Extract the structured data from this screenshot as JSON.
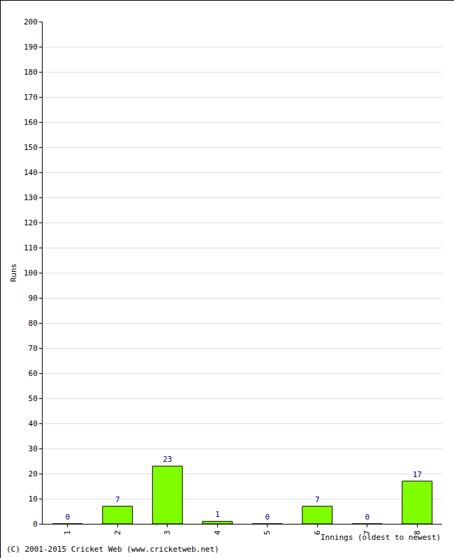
{
  "chart_data": {
    "type": "bar",
    "categories": [
      "1",
      "2",
      "3",
      "4",
      "5",
      "6",
      "7",
      "8"
    ],
    "values": [
      0,
      7,
      23,
      1,
      0,
      7,
      0,
      17
    ],
    "color": "#80ff00",
    "y_label": "Runs",
    "x_label": "Innings (oldest to newest)",
    "annotations": [
      "(C) 2001-2015 Cricket Web (www.cricketweb.net)"
    ],
    "ylim": [
      0,
      200
    ],
    "yticks": [
      0,
      10,
      20,
      30,
      40,
      50,
      60,
      70,
      80,
      90,
      100,
      110,
      120,
      130,
      140,
      150,
      160,
      170,
      180,
      190,
      200
    ],
    "grid": true,
    "data_labels": true
  }
}
